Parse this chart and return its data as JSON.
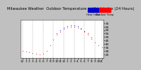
{
  "title": "Milwaukee Weather  Outdoor Temperature vs Heat Index (24 Hours)",
  "bg_color": "#c0c0c0",
  "plot_bg": "#ffffff",
  "border_color": "#444444",
  "grid_color": "#aaaaaa",
  "hours": [
    0,
    1,
    2,
    3,
    4,
    5,
    6,
    7,
    8,
    9,
    10,
    11,
    12,
    13,
    14,
    15,
    16,
    17,
    18,
    19,
    20,
    21,
    22,
    23
  ],
  "temp": [
    30,
    29,
    28,
    27,
    26,
    25,
    26,
    30,
    38,
    46,
    53,
    58,
    62,
    64,
    65,
    65,
    64,
    62,
    58,
    53,
    47,
    42,
    38,
    35
  ],
  "heat_index": [
    null,
    null,
    null,
    null,
    null,
    null,
    null,
    null,
    null,
    null,
    55,
    60,
    64,
    66,
    67,
    67,
    66,
    63,
    59,
    55,
    49,
    null,
    null,
    null
  ],
  "temp_color": "#ff0000",
  "hi_color": "#0000cc",
  "ylim": [
    20,
    75
  ],
  "xlim": [
    -0.5,
    23.5
  ],
  "xtick_labels": [
    "12",
    "1",
    "2",
    "3",
    "4",
    "5",
    "6",
    "7",
    "8",
    "9",
    "10",
    "11",
    "12",
    "1",
    "2",
    "3",
    "4",
    "5",
    "6",
    "7",
    "8",
    "9",
    "10",
    "11"
  ],
  "ytick_vals": [
    25,
    30,
    35,
    40,
    45,
    50,
    55,
    60,
    65,
    70
  ],
  "ytick_labels": [
    "25",
    "30",
    "35",
    "40",
    "45",
    "50",
    "55",
    "60",
    "65",
    "70"
  ],
  "legend_temp": "Outdoor Temp.",
  "legend_hi": "Heat Index",
  "marker_size": 1.5,
  "title_fontsize": 3.8,
  "tick_fontsize": 3.0,
  "grid_x_positions": [
    0,
    3,
    6,
    9,
    12,
    15,
    18,
    21,
    23
  ]
}
